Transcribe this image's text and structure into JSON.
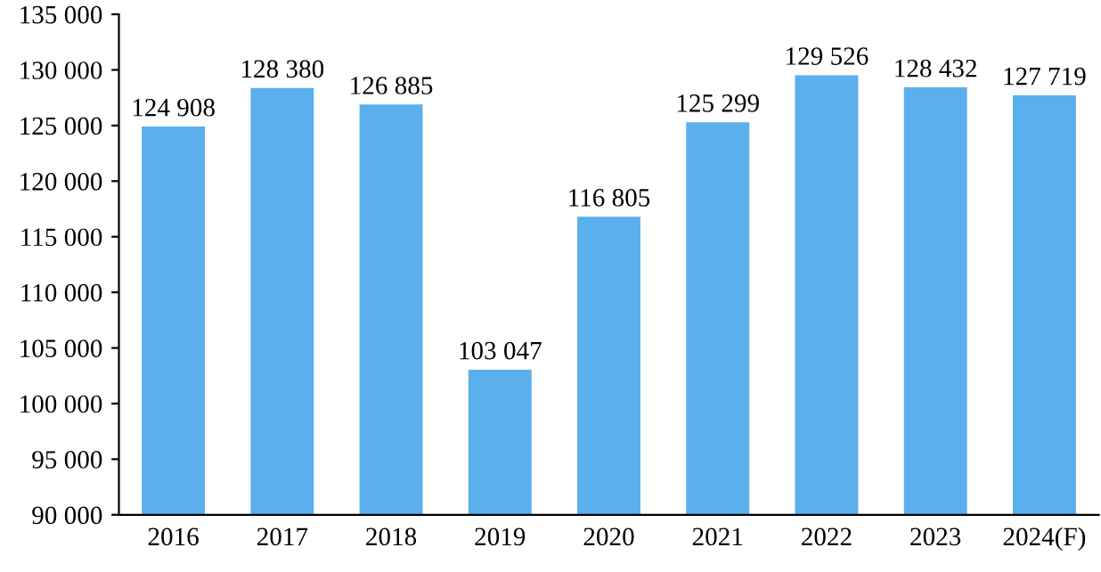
{
  "chart_data": {
    "type": "bar",
    "categories": [
      "2016",
      "2017",
      "2018",
      "2019",
      "2020",
      "2021",
      "2022",
      "2023",
      "2024(F)"
    ],
    "values": [
      124908,
      128380,
      126885,
      103047,
      116805,
      125299,
      129526,
      128432,
      127719
    ],
    "value_labels": [
      "124 908",
      "128 380",
      "126 885",
      "103 047",
      "116 805",
      "125 299",
      "129 526",
      "128 432",
      "127 719"
    ],
    "color": "#5aafec",
    "ylim": [
      90000,
      135000
    ],
    "yticks": [
      {
        "value": 90000,
        "label": "90 000"
      },
      {
        "value": 95000,
        "label": "95 000"
      },
      {
        "value": 100000,
        "label": "100 000"
      },
      {
        "value": 105000,
        "label": "105 000"
      },
      {
        "value": 110000,
        "label": "110 000"
      },
      {
        "value": 115000,
        "label": "115 000"
      },
      {
        "value": 120000,
        "label": "120 000"
      },
      {
        "value": 125000,
        "label": "125 000"
      },
      {
        "value": 130000,
        "label": "130 000"
      },
      {
        "value": 135000,
        "label": "135 000"
      }
    ],
    "grid": false,
    "legend": false
  }
}
